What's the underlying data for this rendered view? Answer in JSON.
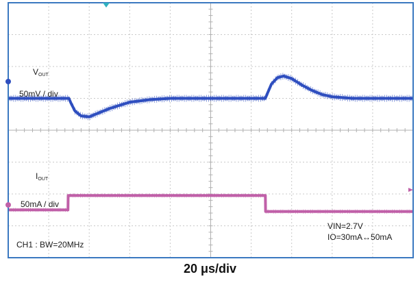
{
  "chart_data": {
    "type": "line",
    "title": "",
    "xlabel": "20 μs/div",
    "x_divisions": 10,
    "y_divisions": 8,
    "xlim": [
      0,
      200
    ],
    "x_unit": "μs",
    "grid": true,
    "series": [
      {
        "name": "VOUT",
        "name_main": "V",
        "name_sub": "OUT",
        "scale": "50mV / div",
        "color": "#2f4fbf",
        "x": [
          0,
          30,
          31,
          33,
          36,
          40,
          45,
          50,
          55,
          60,
          70,
          80,
          90,
          100,
          110,
          120,
          127,
          128,
          130,
          133,
          136,
          140,
          145,
          150,
          155,
          160,
          170,
          180,
          200
        ],
        "y": [
          5.0,
          5.0,
          4.85,
          4.6,
          4.45,
          4.42,
          4.55,
          4.68,
          4.78,
          4.88,
          4.96,
          5.0,
          5.0,
          5.0,
          5.0,
          5.0,
          5.0,
          5.15,
          5.45,
          5.65,
          5.7,
          5.62,
          5.42,
          5.25,
          5.12,
          5.05,
          5.0,
          5.0,
          5.0
        ]
      },
      {
        "name": "IOUT",
        "name_main": "I",
        "name_sub": "OUT",
        "scale": "50mA / div",
        "color": "#c060a8",
        "x": [
          0,
          29.5,
          29.6,
          127,
          127.1,
          200
        ],
        "y": [
          1.5,
          1.5,
          1.95,
          1.95,
          1.45,
          1.45
        ]
      }
    ],
    "annotations": {
      "bandwidth": "CH1 : BW=20MHz",
      "vin": "VIN=2.7V",
      "io": "IO=30mA↔50mA"
    }
  }
}
